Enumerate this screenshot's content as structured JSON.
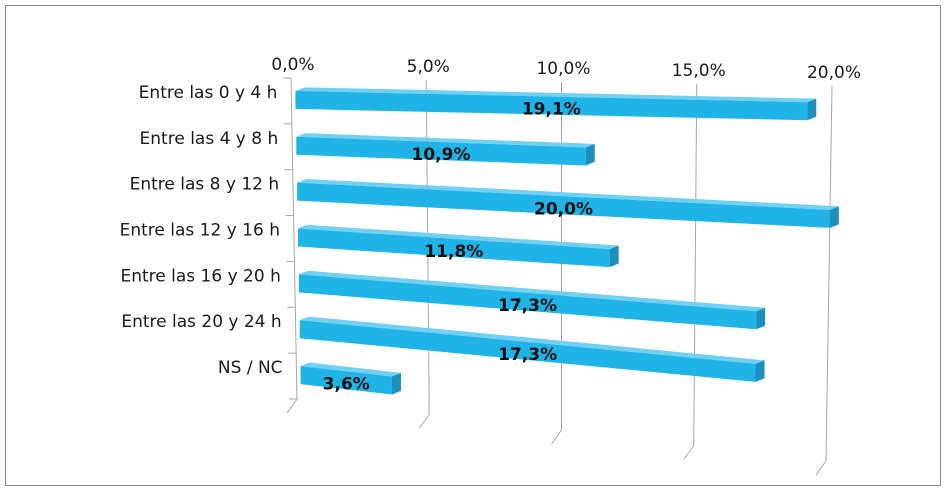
{
  "chart_data": {
    "type": "bar",
    "orientation": "horizontal",
    "style": "3d",
    "categories": [
      "Entre las 0 y 4 h",
      "Entre las 4 y 8 h",
      "Entre las 8 y 12 h",
      "Entre las 12 y 16 h",
      "Entre las 16 y 20 h",
      "Entre las 20 y 24 h",
      "NS / NC"
    ],
    "values": [
      19.1,
      10.9,
      20.0,
      11.8,
      17.3,
      17.3,
      3.6
    ],
    "data_labels": [
      "19,1%",
      "10,9%",
      "20,0%",
      "11,8%",
      "17,3%",
      "17,3%",
      "3,6%"
    ],
    "x_ticks": [
      0,
      5,
      10,
      15,
      20
    ],
    "x_tick_labels": [
      "0,0%",
      "5,0%",
      "10,0%",
      "15,0%",
      "20,0%"
    ],
    "xlim": [
      0,
      20
    ],
    "axis_position": "top",
    "grid": true,
    "legend": "none",
    "bar_color": "#1fb3e8",
    "bar_side_color": "#1990bd",
    "bar_top_color": "#6fd0f2",
    "grid_color": "#a6a6a6"
  }
}
